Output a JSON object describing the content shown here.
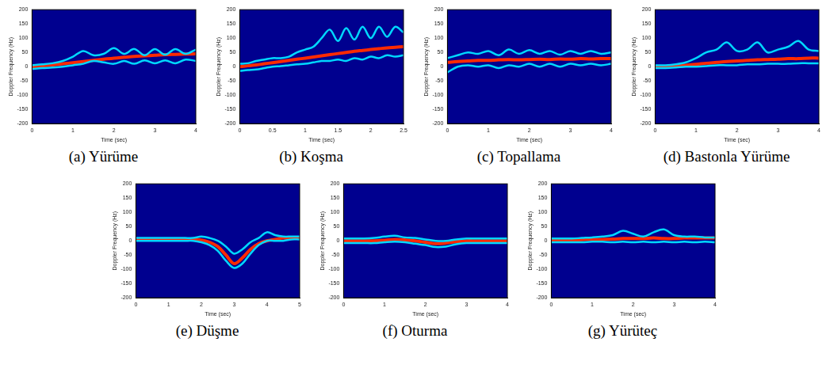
{
  "chart_data": [
    {
      "type": "line",
      "title": "(a) Yürüme",
      "x_label": "Time (sec)",
      "y_label": "Doppler Frequency (Hz)",
      "grid": false,
      "xlim": [
        0,
        4
      ],
      "xticks": [
        0,
        1,
        2,
        3,
        4
      ],
      "ylim": [
        -200,
        200
      ],
      "yticks": [
        -200,
        -150,
        -100,
        -50,
        0,
        50,
        100,
        150,
        200
      ],
      "x": [
        0,
        0.25,
        0.5,
        0.75,
        1,
        1.25,
        1.5,
        1.75,
        2,
        2.25,
        2.5,
        2.75,
        3,
        3.25,
        3.5,
        3.75,
        4
      ],
      "series": [
        {
          "color": "#00d8ff",
          "values": [
            5,
            8,
            12,
            20,
            35,
            55,
            40,
            45,
            65,
            45,
            62,
            40,
            62,
            42,
            62,
            45,
            60
          ]
        },
        {
          "color": "#00d8ff",
          "values": [
            -8,
            -5,
            -3,
            0,
            5,
            10,
            20,
            15,
            10,
            20,
            10,
            22,
            12,
            22,
            12,
            25,
            20
          ]
        },
        {
          "color": "#ff2a00",
          "values": [
            0,
            3,
            6,
            10,
            14,
            18,
            22,
            26,
            30,
            33,
            36,
            38,
            40,
            42,
            43,
            44,
            45
          ]
        }
      ]
    },
    {
      "type": "line",
      "title": "(b) Koşma",
      "x_label": "Time (sec)",
      "y_label": "Doppler Frequency (Hz)",
      "grid": false,
      "xlim": [
        0,
        2.5
      ],
      "xticks": [
        0,
        0.5,
        1,
        1.5,
        2,
        2.5
      ],
      "ylim": [
        -200,
        200
      ],
      "yticks": [
        -200,
        -150,
        -100,
        -50,
        0,
        50,
        100,
        150,
        200
      ],
      "x": [
        0,
        0.125,
        0.25,
        0.375,
        0.5,
        0.625,
        0.75,
        0.875,
        1,
        1.125,
        1.25,
        1.375,
        1.5,
        1.625,
        1.75,
        1.875,
        2,
        2.125,
        2.25,
        2.375,
        2.5
      ],
      "series": [
        {
          "color": "#00d8ff",
          "values": [
            10,
            12,
            20,
            25,
            30,
            30,
            35,
            50,
            60,
            70,
            100,
            130,
            90,
            135,
            95,
            140,
            100,
            140,
            105,
            140,
            120
          ]
        },
        {
          "color": "#00d8ff",
          "values": [
            -15,
            -12,
            -10,
            -5,
            0,
            2,
            5,
            8,
            10,
            15,
            20,
            20,
            25,
            20,
            30,
            25,
            35,
            30,
            40,
            35,
            40
          ]
        },
        {
          "color": "#ff2a00",
          "values": [
            0,
            3,
            6,
            10,
            14,
            18,
            22,
            26,
            30,
            34,
            38,
            42,
            46,
            50,
            54,
            57,
            60,
            63,
            66,
            68,
            70
          ]
        }
      ]
    },
    {
      "type": "line",
      "title": "(c) Topallama",
      "x_label": "Time (sec)",
      "y_label": "Doppler Frequency (Hz)",
      "grid": false,
      "xlim": [
        0,
        4
      ],
      "xticks": [
        0,
        1,
        2,
        3,
        4
      ],
      "ylim": [
        -200,
        200
      ],
      "yticks": [
        -200,
        -150,
        -100,
        -50,
        0,
        50,
        100,
        150,
        200
      ],
      "x": [
        0,
        0.25,
        0.5,
        0.75,
        1,
        1.25,
        1.5,
        1.75,
        2,
        2.25,
        2.5,
        2.75,
        3,
        3.25,
        3.5,
        3.75,
        4
      ],
      "series": [
        {
          "color": "#00d8ff",
          "values": [
            30,
            40,
            50,
            45,
            55,
            40,
            60,
            45,
            58,
            45,
            55,
            42,
            55,
            45,
            55,
            45,
            50
          ]
        },
        {
          "color": "#00d8ff",
          "values": [
            -20,
            0,
            5,
            0,
            5,
            -5,
            5,
            0,
            10,
            0,
            10,
            0,
            10,
            5,
            10,
            5,
            10
          ]
        },
        {
          "color": "#ff2a00",
          "values": [
            15,
            18,
            20,
            22,
            22,
            24,
            25,
            24,
            25,
            26,
            25,
            27,
            26,
            28,
            27,
            28,
            28
          ]
        }
      ]
    },
    {
      "type": "line",
      "title": "(d) Bastonla Yürüme",
      "x_label": "Time (sec)",
      "y_label": "Doppler Frequency (Hz)",
      "grid": false,
      "xlim": [
        0,
        4
      ],
      "xticks": [
        0,
        1,
        2,
        3,
        4
      ],
      "ylim": [
        -200,
        200
      ],
      "yticks": [
        -200,
        -150,
        -100,
        -50,
        0,
        50,
        100,
        150,
        200
      ],
      "x": [
        0,
        0.25,
        0.5,
        0.75,
        1,
        1.25,
        1.5,
        1.75,
        2,
        2.25,
        2.5,
        2.75,
        3,
        3.25,
        3.5,
        3.75,
        4
      ],
      "series": [
        {
          "color": "#00d8ff",
          "values": [
            5,
            5,
            8,
            15,
            30,
            50,
            60,
            85,
            55,
            60,
            85,
            50,
            60,
            70,
            90,
            60,
            55
          ]
        },
        {
          "color": "#00d8ff",
          "values": [
            -5,
            -5,
            -3,
            0,
            0,
            2,
            5,
            5,
            5,
            8,
            8,
            10,
            10,
            10,
            12,
            12,
            12
          ]
        },
        {
          "color": "#ff2a00",
          "values": [
            0,
            0,
            2,
            5,
            8,
            12,
            15,
            18,
            20,
            22,
            24,
            25,
            26,
            28,
            28,
            30,
            30
          ]
        }
      ]
    },
    {
      "type": "line",
      "title": "(e) Düşme",
      "x_label": "Time (sec)",
      "y_label": "Doppler Frequency (Hz)",
      "grid": false,
      "xlim": [
        0,
        5
      ],
      "xticks": [
        0,
        1,
        2,
        3,
        4,
        5
      ],
      "ylim": [
        -200,
        200
      ],
      "yticks": [
        -200,
        -150,
        -100,
        -50,
        0,
        50,
        100,
        150,
        200
      ],
      "x": [
        0,
        0.25,
        0.5,
        0.75,
        1,
        1.25,
        1.5,
        1.75,
        2,
        2.25,
        2.5,
        2.75,
        3,
        3.25,
        3.5,
        3.75,
        4,
        4.25,
        4.5,
        4.75,
        5
      ],
      "series": [
        {
          "color": "#00d8ff",
          "values": [
            10,
            10,
            10,
            10,
            10,
            10,
            10,
            10,
            15,
            10,
            0,
            -20,
            -45,
            -30,
            -5,
            10,
            30,
            20,
            15,
            15,
            15
          ]
        },
        {
          "color": "#00d8ff",
          "values": [
            0,
            0,
            0,
            0,
            0,
            0,
            0,
            0,
            -5,
            -15,
            -35,
            -70,
            -95,
            -80,
            -45,
            -15,
            0,
            0,
            0,
            5,
            5
          ]
        },
        {
          "color": "#ff2a00",
          "values": [
            5,
            5,
            5,
            5,
            5,
            5,
            5,
            5,
            3,
            -5,
            -20,
            -50,
            -80,
            -60,
            -30,
            -10,
            0,
            5,
            10,
            10,
            10
          ]
        }
      ]
    },
    {
      "type": "line",
      "title": "(f) Oturma",
      "x_label": "Time (sec)",
      "y_label": "Doppler Frequency (Hz)",
      "grid": false,
      "xlim": [
        0,
        4
      ],
      "xticks": [
        0,
        1,
        2,
        3,
        4
      ],
      "ylim": [
        -200,
        200
      ],
      "yticks": [
        -200,
        -150,
        -100,
        -50,
        0,
        50,
        100,
        150,
        200
      ],
      "x": [
        0,
        0.25,
        0.5,
        0.75,
        1,
        1.25,
        1.5,
        1.75,
        2,
        2.25,
        2.5,
        2.75,
        3,
        3.25,
        3.5,
        3.75,
        4
      ],
      "series": [
        {
          "color": "#00d8ff",
          "values": [
            8,
            8,
            8,
            10,
            15,
            18,
            12,
            10,
            5,
            0,
            0,
            5,
            8,
            8,
            8,
            8,
            8
          ]
        },
        {
          "color": "#00d8ff",
          "values": [
            -8,
            -8,
            -8,
            -8,
            -5,
            -3,
            -5,
            -10,
            -15,
            -22,
            -20,
            -12,
            -8,
            -8,
            -8,
            -8,
            -8
          ]
        },
        {
          "color": "#ff2a00",
          "values": [
            0,
            0,
            0,
            0,
            2,
            5,
            3,
            0,
            -5,
            -10,
            -8,
            -3,
            0,
            0,
            0,
            0,
            0
          ]
        }
      ]
    },
    {
      "type": "line",
      "title": "(g) Yürüteç",
      "x_label": "Time (sec)",
      "y_label": "Doppler Frequency (Hz)",
      "grid": false,
      "xlim": [
        0,
        4
      ],
      "xticks": [
        0,
        1,
        2,
        3,
        4
      ],
      "ylim": [
        -200,
        200
      ],
      "yticks": [
        -200,
        -150,
        -100,
        -50,
        0,
        50,
        100,
        150,
        200
      ],
      "x": [
        0,
        0.25,
        0.5,
        0.75,
        1,
        1.25,
        1.5,
        1.75,
        2,
        2.25,
        2.5,
        2.75,
        3,
        3.25,
        3.5,
        3.75,
        4
      ],
      "series": [
        {
          "color": "#00d8ff",
          "values": [
            8,
            8,
            8,
            10,
            12,
            15,
            20,
            35,
            25,
            15,
            30,
            40,
            20,
            15,
            15,
            12,
            12
          ]
        },
        {
          "color": "#00d8ff",
          "values": [
            -5,
            -5,
            -5,
            -5,
            -3,
            -3,
            -5,
            -3,
            -5,
            -3,
            -5,
            -3,
            -5,
            -3,
            -5,
            -3,
            -5
          ]
        },
        {
          "color": "#ff2a00",
          "values": [
            3,
            3,
            3,
            4,
            5,
            5,
            6,
            8,
            8,
            8,
            10,
            8,
            8,
            10,
            10,
            10,
            10
          ]
        }
      ]
    }
  ]
}
